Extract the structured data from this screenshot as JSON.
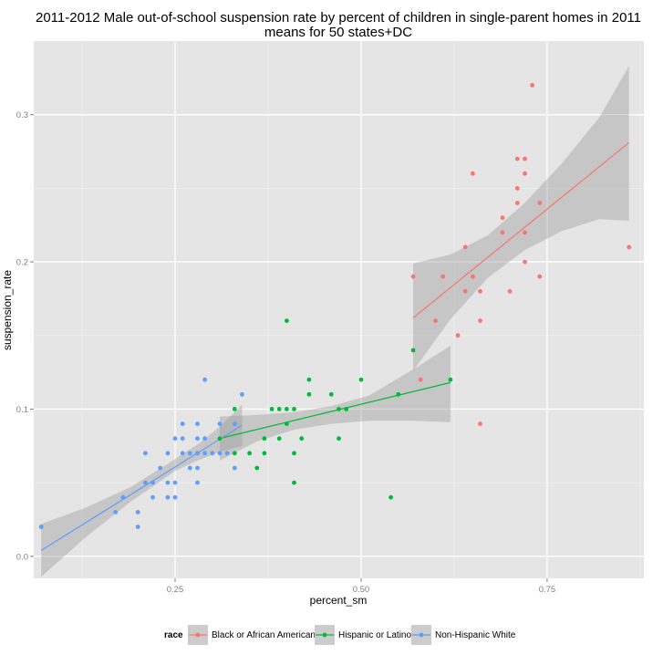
{
  "chart_data": {
    "type": "scatter",
    "title": "2011-2012 Male out-of-school suspension rate by percent of children in single-parent homes in 2011",
    "subtitle": "means for 50 states+DC",
    "xlabel": "percent_sm",
    "ylabel": "suspension_rate",
    "xlim": [
      0.06,
      0.88
    ],
    "ylim": [
      -0.015,
      0.35
    ],
    "x_ticks": [
      0.25,
      0.5,
      0.75
    ],
    "x_tick_labels": [
      "0.25",
      "0.50",
      "0.75"
    ],
    "y_ticks": [
      0.0,
      0.1,
      0.2,
      0.3
    ],
    "y_tick_labels": [
      "0.0",
      "0.1",
      "0.2",
      "0.3"
    ],
    "grid": true,
    "legend": {
      "title": "race",
      "position": "bottom"
    },
    "series": [
      {
        "name": "Black or African American",
        "color": "#F8766D",
        "points": [
          [
            0.57,
            0.19
          ],
          [
            0.58,
            0.12
          ],
          [
            0.6,
            0.16
          ],
          [
            0.61,
            0.19
          ],
          [
            0.63,
            0.15
          ],
          [
            0.64,
            0.21
          ],
          [
            0.64,
            0.18
          ],
          [
            0.65,
            0.26
          ],
          [
            0.65,
            0.19
          ],
          [
            0.66,
            0.18
          ],
          [
            0.66,
            0.16
          ],
          [
            0.66,
            0.09
          ],
          [
            0.69,
            0.23
          ],
          [
            0.69,
            0.22
          ],
          [
            0.7,
            0.18
          ],
          [
            0.71,
            0.27
          ],
          [
            0.71,
            0.25
          ],
          [
            0.71,
            0.24
          ],
          [
            0.72,
            0.27
          ],
          [
            0.72,
            0.26
          ],
          [
            0.72,
            0.22
          ],
          [
            0.72,
            0.2
          ],
          [
            0.73,
            0.32
          ],
          [
            0.74,
            0.24
          ],
          [
            0.74,
            0.19
          ],
          [
            0.86,
            0.21
          ]
        ],
        "fit": {
          "x": [
            0.57,
            0.86
          ],
          "y": [
            0.162,
            0.281
          ]
        },
        "band": {
          "x": [
            0.57,
            0.62,
            0.67,
            0.72,
            0.77,
            0.82,
            0.86
          ],
          "lower": [
            0.126,
            0.161,
            0.189,
            0.208,
            0.221,
            0.229,
            0.228
          ],
          "upper": [
            0.199,
            0.205,
            0.218,
            0.24,
            0.267,
            0.298,
            0.333
          ]
        }
      },
      {
        "name": "Hispanic or Latino",
        "color": "#00BA38",
        "points": [
          [
            0.31,
            0.08
          ],
          [
            0.33,
            0.1
          ],
          [
            0.33,
            0.07
          ],
          [
            0.35,
            0.07
          ],
          [
            0.36,
            0.06
          ],
          [
            0.37,
            0.08
          ],
          [
            0.37,
            0.07
          ],
          [
            0.38,
            0.1
          ],
          [
            0.39,
            0.1
          ],
          [
            0.39,
            0.08
          ],
          [
            0.4,
            0.16
          ],
          [
            0.4,
            0.1
          ],
          [
            0.4,
            0.09
          ],
          [
            0.41,
            0.1
          ],
          [
            0.41,
            0.07
          ],
          [
            0.41,
            0.05
          ],
          [
            0.42,
            0.08
          ],
          [
            0.43,
            0.12
          ],
          [
            0.43,
            0.11
          ],
          [
            0.46,
            0.11
          ],
          [
            0.47,
            0.1
          ],
          [
            0.47,
            0.08
          ],
          [
            0.48,
            0.1
          ],
          [
            0.5,
            0.12
          ],
          [
            0.54,
            0.04
          ],
          [
            0.55,
            0.11
          ],
          [
            0.57,
            0.14
          ],
          [
            0.62,
            0.12
          ]
        ],
        "fit": {
          "x": [
            0.31,
            0.62
          ],
          "y": [
            0.08,
            0.118
          ]
        },
        "band": {
          "x": [
            0.31,
            0.36,
            0.41,
            0.46,
            0.51,
            0.57,
            0.62
          ],
          "lower": [
            0.065,
            0.078,
            0.086,
            0.09,
            0.092,
            0.092,
            0.091
          ],
          "upper": [
            0.095,
            0.096,
            0.098,
            0.102,
            0.109,
            0.127,
            0.143
          ]
        }
      },
      {
        "name": "Non-Hispanic White",
        "color": "#619CFF",
        "points": [
          [
            0.07,
            0.02
          ],
          [
            0.17,
            0.03
          ],
          [
            0.18,
            0.04
          ],
          [
            0.2,
            0.03
          ],
          [
            0.2,
            0.02
          ],
          [
            0.21,
            0.07
          ],
          [
            0.21,
            0.05
          ],
          [
            0.22,
            0.05
          ],
          [
            0.22,
            0.04
          ],
          [
            0.23,
            0.06
          ],
          [
            0.24,
            0.07
          ],
          [
            0.24,
            0.05
          ],
          [
            0.24,
            0.04
          ],
          [
            0.25,
            0.08
          ],
          [
            0.25,
            0.05
          ],
          [
            0.25,
            0.04
          ],
          [
            0.26,
            0.09
          ],
          [
            0.26,
            0.08
          ],
          [
            0.26,
            0.07
          ],
          [
            0.27,
            0.07
          ],
          [
            0.27,
            0.06
          ],
          [
            0.28,
            0.09
          ],
          [
            0.28,
            0.08
          ],
          [
            0.28,
            0.07
          ],
          [
            0.28,
            0.06
          ],
          [
            0.28,
            0.05
          ],
          [
            0.29,
            0.12
          ],
          [
            0.29,
            0.08
          ],
          [
            0.29,
            0.07
          ],
          [
            0.3,
            0.07
          ],
          [
            0.31,
            0.09
          ],
          [
            0.31,
            0.07
          ],
          [
            0.32,
            0.07
          ],
          [
            0.33,
            0.09
          ],
          [
            0.33,
            0.06
          ],
          [
            0.34,
            0.11
          ]
        ],
        "fit": {
          "x": [
            0.07,
            0.34
          ],
          "y": [
            0.004,
            0.089
          ]
        },
        "band": {
          "x": [
            0.07,
            0.13,
            0.19,
            0.25,
            0.28,
            0.31,
            0.34
          ],
          "lower": [
            -0.014,
            0.013,
            0.037,
            0.058,
            0.065,
            0.071,
            0.075
          ],
          "upper": [
            0.022,
            0.033,
            0.047,
            0.066,
            0.076,
            0.088,
            0.103
          ]
        }
      }
    ]
  }
}
